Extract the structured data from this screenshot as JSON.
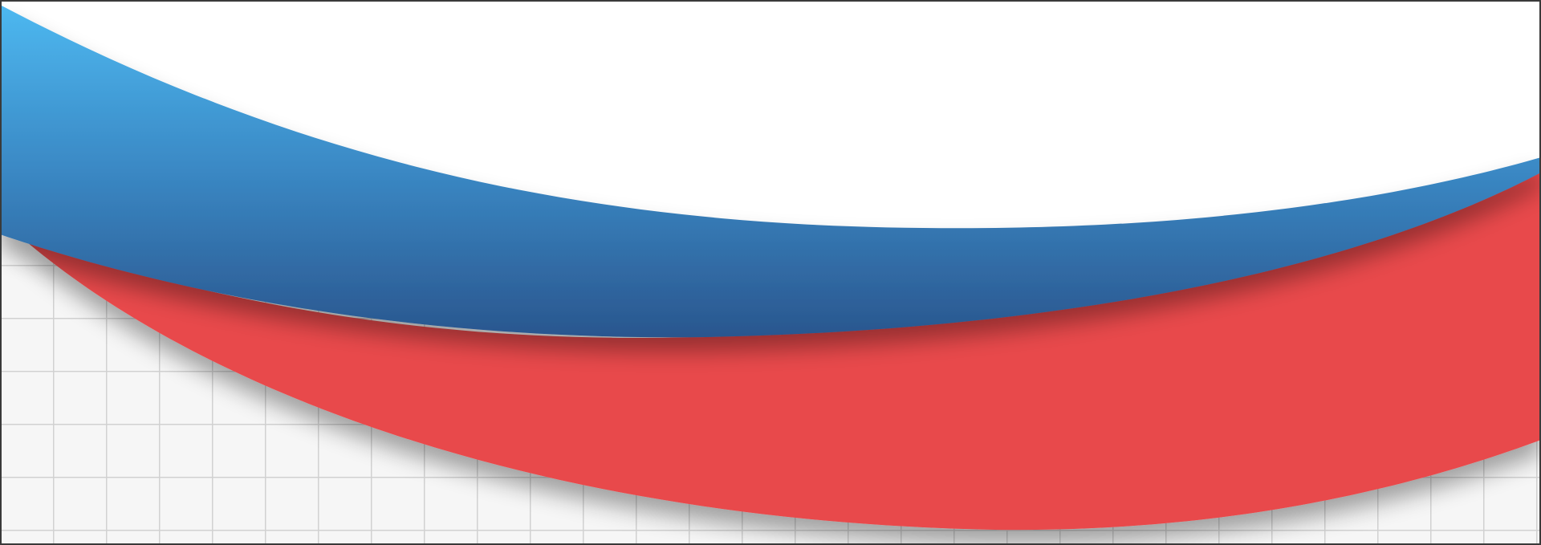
{
  "colors": {
    "background": "#ffffff",
    "blue_band_top": "#4db8f0",
    "blue_band_mid": "#3a88c4",
    "blue_band_bottom": "#2a568e",
    "red_band": "#e84a4b",
    "tile_grout": "#c9c9c9",
    "tile_face": "#f4f4f4",
    "border": "#3a3a3a"
  },
  "elements": {
    "background": "white-backdrop",
    "texture": "tiled-grid-texture",
    "bands": [
      "blue-wave-band",
      "red-wave-band"
    ]
  }
}
